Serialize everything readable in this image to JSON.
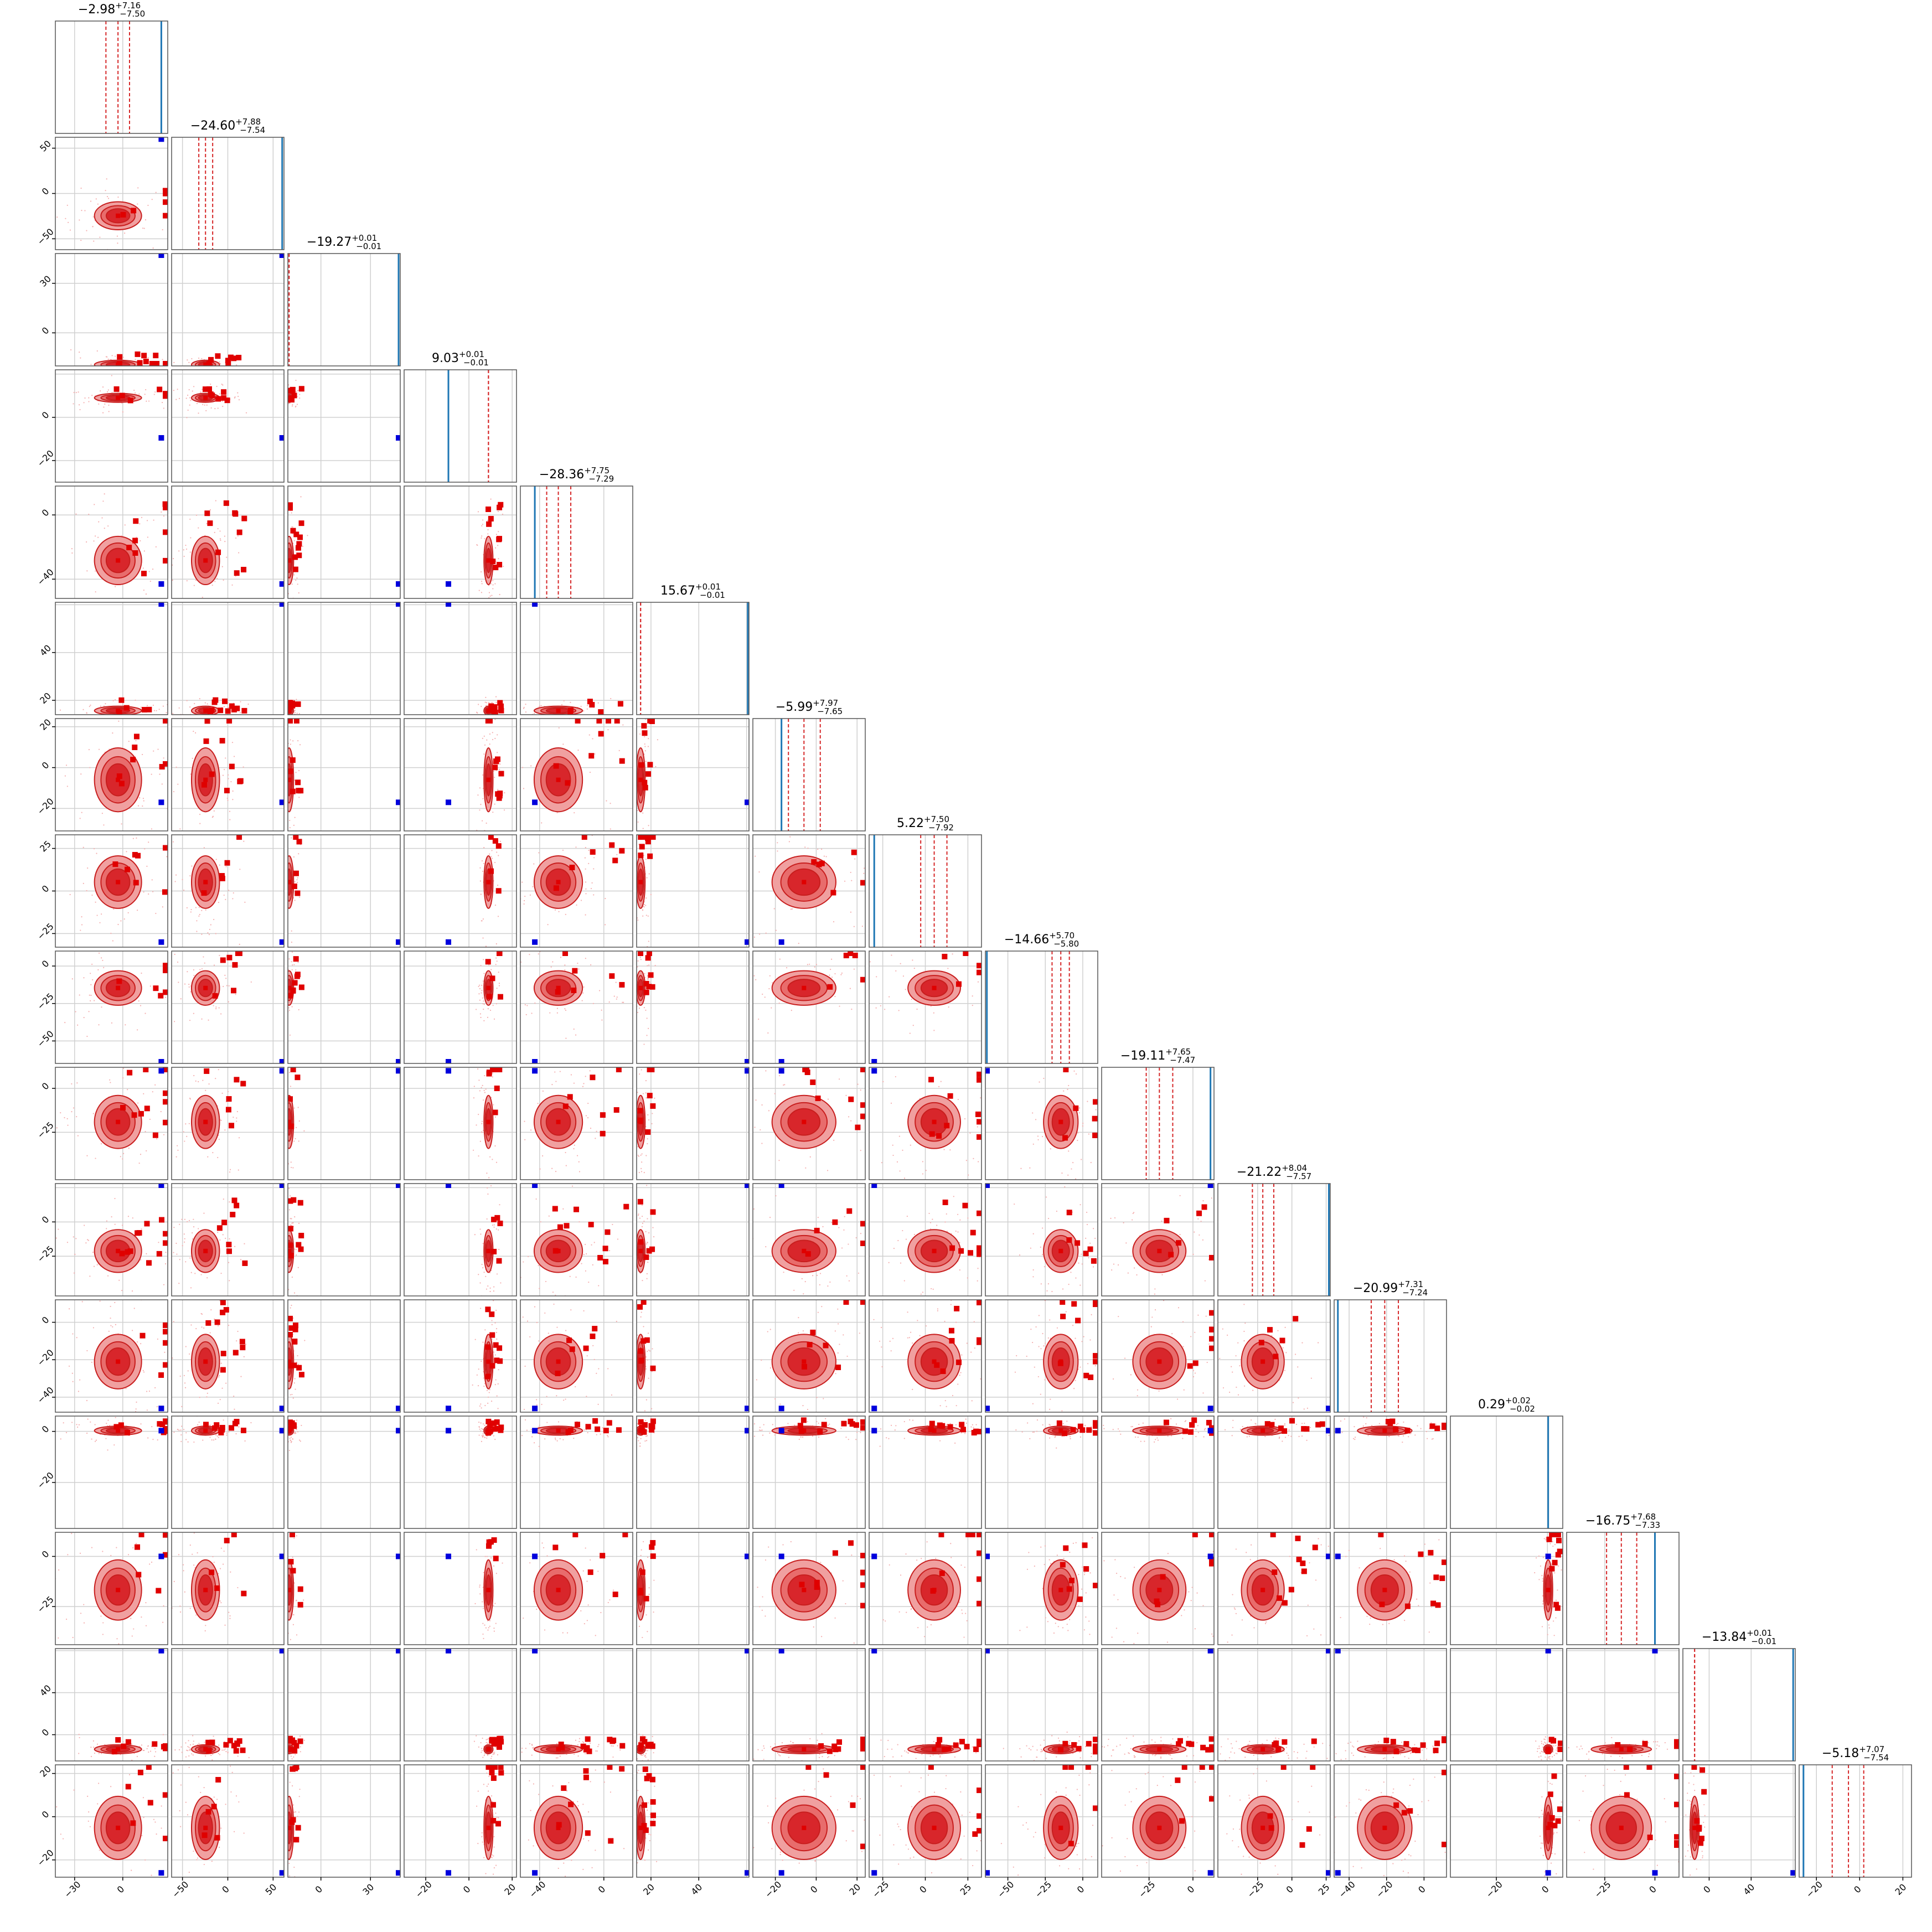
{
  "chart_data": {
    "type": "scatter",
    "variant": "corner-plot",
    "n_params": 16,
    "grid": true,
    "colors": {
      "contour_fill_outer": "#f0a0a0",
      "contour_fill_inner": "#d8262b",
      "contour_line": "#c81e1e",
      "marker_red": "#e00000",
      "marker_blue": "#0000dd",
      "truth_line": "#1f77b4",
      "quantile_line": "#d62728",
      "grid": "#d0d0d0",
      "frame": "#555555"
    },
    "parameters": [
      {
        "median": "-2.98",
        "plus": "+7.16",
        "minus": "-7.50",
        "range": [
          -42,
          28
        ],
        "truth": 24,
        "q": [
          -10.5,
          -2.98,
          4.2
        ],
        "ticks": [
          -30,
          0
        ]
      },
      {
        "median": "-24.60",
        "plus": "+7.88",
        "minus": "-7.54",
        "range": [
          -62,
          62
        ],
        "truth": 60,
        "q": [
          -32,
          -24.6,
          -16.7
        ],
        "ticks": [
          -50,
          0,
          50
        ]
      },
      {
        "median": "-19.27",
        "plus": "+0.01",
        "minus": "-0.01",
        "range": [
          -20,
          48
        ],
        "truth": 47,
        "q": [
          -19.28,
          -19.27,
          -19.26
        ],
        "ticks": [
          0,
          30
        ]
      },
      {
        "median": "9.03",
        "plus": "+0.01",
        "minus": "-0.01",
        "range": [
          -30,
          22
        ],
        "truth": -9.5,
        "q": [
          9.02,
          9.03,
          9.04
        ],
        "ticks": [
          -20,
          0,
          20
        ]
      },
      {
        "median": "-28.36",
        "plus": "+7.75",
        "minus": "-7.29",
        "range": [
          -52,
          18
        ],
        "truth": -43,
        "q": [
          -35.6,
          -28.36,
          -20.6
        ],
        "ticks": [
          -40,
          0
        ]
      },
      {
        "median": "15.67",
        "plus": "+0.01",
        "minus": "-0.01",
        "range": [
          14,
          61
        ],
        "truth": 60.5,
        "q": [
          15.66,
          15.67,
          15.68
        ],
        "ticks": [
          20,
          40,
          60
        ]
      },
      {
        "median": "-5.99",
        "plus": "+7.97",
        "minus": "-7.65",
        "range": [
          -31,
          24
        ],
        "truth": -17,
        "q": [
          -13.6,
          -5.99,
          1.98
        ],
        "ticks": [
          -20,
          0,
          20
        ]
      },
      {
        "median": "5.22",
        "plus": "+7.50",
        "minus": "-7.92",
        "range": [
          -33,
          33
        ],
        "truth": -30,
        "q": [
          -2.7,
          5.22,
          12.7
        ],
        "ticks": [
          -25,
          0,
          25
        ]
      },
      {
        "median": "-14.66",
        "plus": "+5.70",
        "minus": "-5.80",
        "range": [
          -65,
          10
        ],
        "truth": -64,
        "q": [
          -20.5,
          -14.66,
          -8.96
        ],
        "ticks": [
          -50,
          -25,
          0
        ]
      },
      {
        "median": "-19.11",
        "plus": "+7.65",
        "minus": "-7.47",
        "range": [
          -52,
          12
        ],
        "truth": 10,
        "q": [
          -26.6,
          -19.11,
          -11.5
        ],
        "ticks": [
          -25,
          0
        ]
      },
      {
        "median": "-21.22",
        "plus": "+8.04",
        "minus": "-7.57",
        "range": [
          -54,
          28
        ],
        "truth": 27,
        "q": [
          -28.8,
          -21.22,
          -13.2
        ],
        "ticks": [
          -25,
          0,
          25
        ]
      },
      {
        "median": "-20.99",
        "plus": "+7.31",
        "minus": "-7.24",
        "range": [
          -48,
          12
        ],
        "truth": -46,
        "q": [
          -28.2,
          -20.99,
          -13.7
        ],
        "ticks": [
          -40,
          -20,
          0
        ]
      },
      {
        "median": "0.29",
        "plus": "+0.02",
        "minus": "-0.02",
        "range": [
          -38,
          6
        ],
        "truth": 0.29,
        "q": [
          0.27,
          0.29,
          0.31
        ],
        "ticks": [
          -20,
          0
        ]
      },
      {
        "median": "-16.75",
        "plus": "+7.68",
        "minus": "-7.33",
        "range": [
          -44,
          12
        ],
        "truth": 0,
        "q": [
          -24.1,
          -16.75,
          -9.07
        ],
        "ticks": [
          -25,
          0
        ]
      },
      {
        "median": "-13.84",
        "plus": "+0.01",
        "minus": "-0.01",
        "range": [
          -25,
          82
        ],
        "truth": 80,
        "q": [
          -13.85,
          -13.84,
          -13.83
        ],
        "ticks": [
          0,
          40,
          80
        ]
      },
      {
        "median": "-5.18",
        "plus": "+7.07",
        "minus": "-7.54",
        "range": [
          -28,
          24
        ],
        "truth": -26,
        "q": [
          -12.7,
          -5.18,
          1.89
        ],
        "ticks": [
          -20,
          0,
          20
        ]
      }
    ]
  }
}
